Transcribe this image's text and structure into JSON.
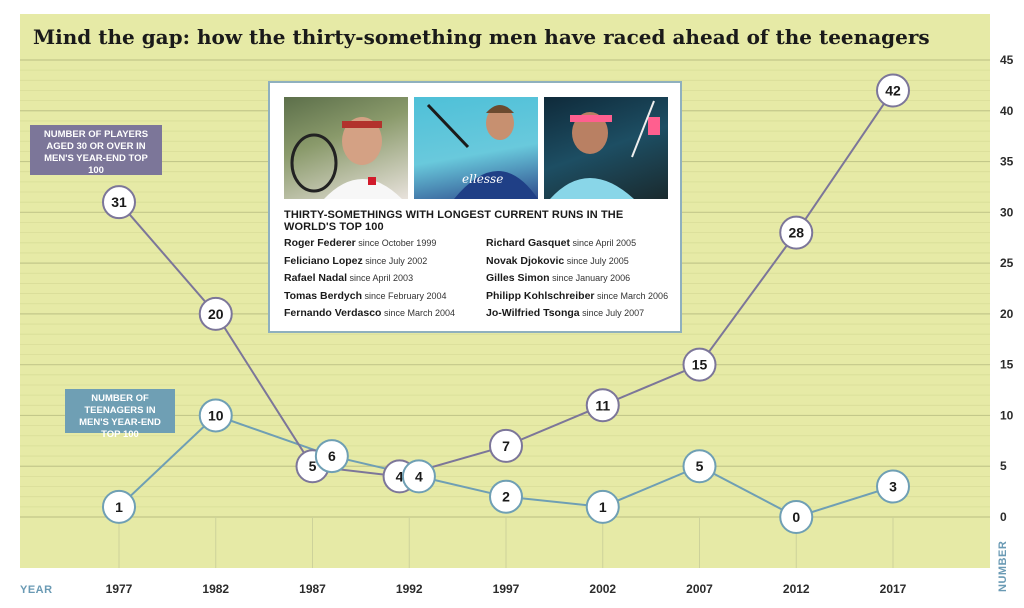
{
  "title": "Mind the gap: how the thirty-something men have raced ahead of the teenagers",
  "callouts": {
    "thirty": "NUMBER OF PLAYERS AGED 30 OR OVER IN MEN'S YEAR-END TOP 100",
    "teen": "NUMBER OF TEENAGERS IN MEN'S YEAR-END TOP 100"
  },
  "panel": {
    "heading": "THIRTY-SOMETHINGS WITH LONGEST CURRENT RUNS IN THE WORLD'S TOP 100",
    "col1": [
      {
        "name": "Roger Federer",
        "since": "since October 1999"
      },
      {
        "name": "Feliciano Lopez",
        "since": "since July 2002"
      },
      {
        "name": "Rafael Nadal",
        "since": "since April 2003"
      },
      {
        "name": "Tomas Berdych",
        "since": "since February 2004"
      },
      {
        "name": "Fernando Verdasco",
        "since": "since March 2004"
      }
    ],
    "col2": [
      {
        "name": "Richard Gasquet",
        "since": "since April 2005"
      },
      {
        "name": "Novak Djokovic",
        "since": "since July 2005"
      },
      {
        "name": "Gilles Simon",
        "since": "since January 2006"
      },
      {
        "name": "Philipp Kohlschreiber",
        "since": "since March 2006"
      },
      {
        "name": "Jo-Wilfried Tsonga",
        "since": "since July 2007"
      }
    ]
  },
  "chart_data": {
    "type": "line",
    "title": "Mind the gap: how the thirty-something men have raced ahead of the teenagers",
    "xlabel": "YEAR",
    "ylabel": "NUMBER",
    "x": [
      1977,
      1982,
      1987,
      1992,
      1997,
      2002,
      2007,
      2012,
      2017
    ],
    "xlim": [
      1977,
      2017
    ],
    "ylim": [
      0,
      45
    ],
    "yticks": [
      0,
      5,
      10,
      15,
      20,
      25,
      30,
      35,
      40,
      45
    ],
    "y_axis_side": "right",
    "grid": true,
    "series": [
      {
        "name": "NUMBER OF PLAYERS AGED 30 OR OVER IN MEN'S YEAR-END TOP 100",
        "color": "#7c7699",
        "points": [
          {
            "x": 1977,
            "y": 31
          },
          {
            "x": 1982,
            "y": 20
          },
          {
            "x": 1987,
            "y": 5
          },
          {
            "x": 1991.5,
            "y": 4
          },
          {
            "x": 1997,
            "y": 7
          },
          {
            "x": 2002,
            "y": 11
          },
          {
            "x": 2007,
            "y": 15
          },
          {
            "x": 2012,
            "y": 28
          },
          {
            "x": 2017,
            "y": 42
          }
        ]
      },
      {
        "name": "NUMBER OF TEENAGERS IN MEN'S YEAR-END TOP 100",
        "color": "#6f9fb4",
        "points": [
          {
            "x": 1977,
            "y": 1
          },
          {
            "x": 1982,
            "y": 10
          },
          {
            "x": 1988,
            "y": 6
          },
          {
            "x": 1992.5,
            "y": 4
          },
          {
            "x": 1997,
            "y": 2
          },
          {
            "x": 2002,
            "y": 1
          },
          {
            "x": 2007,
            "y": 5
          },
          {
            "x": 2012,
            "y": 0
          },
          {
            "x": 2017,
            "y": 3
          }
        ]
      }
    ]
  }
}
